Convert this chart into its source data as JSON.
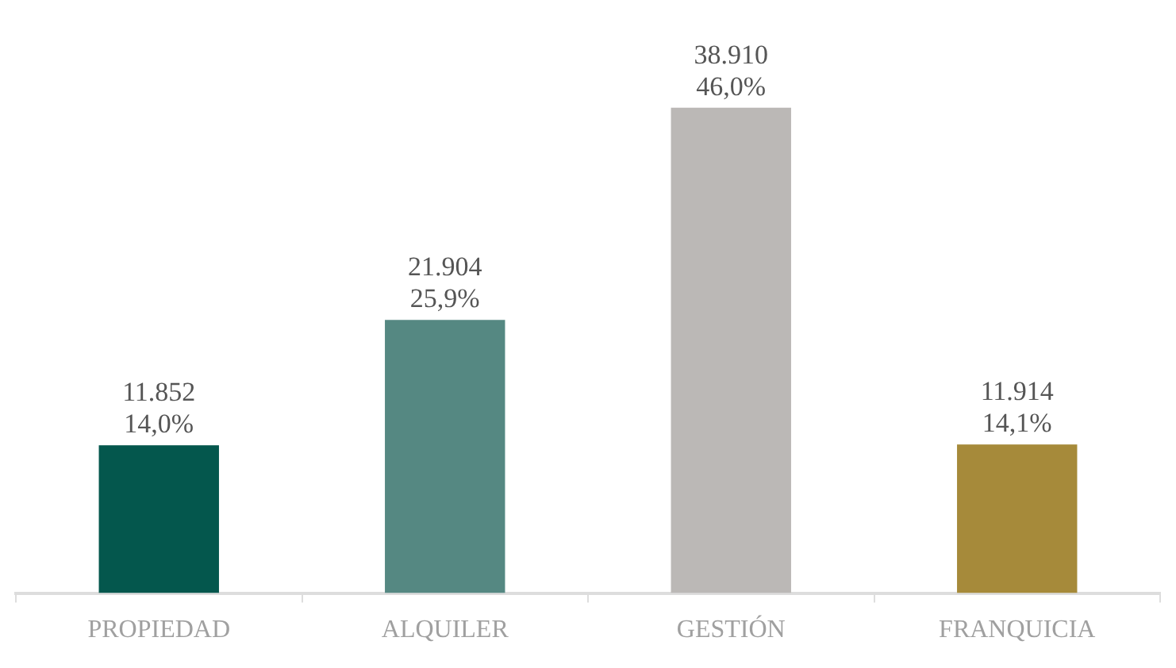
{
  "chart_data": {
    "type": "bar",
    "categories": [
      "PROPIEDAD",
      "ALQUILER",
      "GESTIÓN",
      "FRANQUICIA"
    ],
    "values": [
      11852,
      21904,
      38910,
      11914
    ],
    "colors": [
      "#04574d",
      "#558882",
      "#bbb8b6",
      "#a68a3a"
    ],
    "value_labels": [
      "11.852\n14,0%",
      "21.904\n25,9%",
      "38.910\n46,0%",
      "11.914\n14,1%"
    ],
    "grid": false,
    "legend": false
  }
}
